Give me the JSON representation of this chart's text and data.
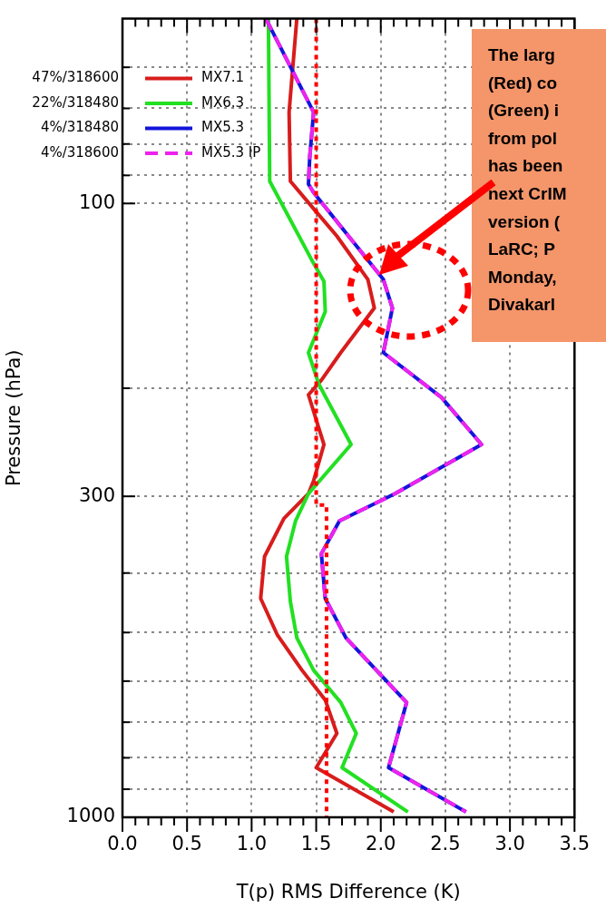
{
  "chart_data": {
    "type": "line",
    "xlabel": "T(p) RMS Difference (K)",
    "ylabel": "Pressure (hPa)",
    "log": "y",
    "grid": true,
    "legend": "top left",
    "marker": "none",
    "xlim": [
      0,
      3.5
    ],
    "ylim": [
      1000,
      50
    ],
    "xticks": [
      {
        "value": 0,
        "label": "0.0"
      },
      {
        "value": 0.1,
        "label": null
      },
      {
        "value": 0.2,
        "label": null
      },
      {
        "value": 0.3,
        "label": null
      },
      {
        "value": 0.4,
        "label": null
      },
      {
        "value": 0.5,
        "label": "0.5"
      },
      {
        "value": 0.6,
        "label": null
      },
      {
        "value": 0.7,
        "label": null
      },
      {
        "value": 0.8,
        "label": null
      },
      {
        "value": 0.9,
        "label": null
      },
      {
        "value": 1,
        "label": "1.0"
      },
      {
        "value": 1.1,
        "label": null
      },
      {
        "value": 1.2,
        "label": null
      },
      {
        "value": 1.3,
        "label": null
      },
      {
        "value": 1.4,
        "label": null
      },
      {
        "value": 1.5,
        "label": "1.5"
      },
      {
        "value": 1.6,
        "label": null
      },
      {
        "value": 1.7,
        "label": null
      },
      {
        "value": 1.8,
        "label": null
      },
      {
        "value": 1.9,
        "label": null
      },
      {
        "value": 2,
        "label": "2.0"
      },
      {
        "value": 2.1,
        "label": null
      },
      {
        "value": 2.2,
        "label": null
      },
      {
        "value": 2.3,
        "label": null
      },
      {
        "value": 2.4,
        "label": null
      },
      {
        "value": 2.5,
        "label": "2.5"
      },
      {
        "value": 2.6,
        "label": null
      },
      {
        "value": 2.7,
        "label": null
      },
      {
        "value": 2.8,
        "label": null
      },
      {
        "value": 2.9,
        "label": null
      },
      {
        "value": 3,
        "label": "3.0"
      },
      {
        "value": 3.1,
        "label": null
      },
      {
        "value": 3.2,
        "label": null
      },
      {
        "value": 3.3,
        "label": null
      },
      {
        "value": 3.4,
        "label": null
      },
      {
        "value": 3.5,
        "label": "3.5"
      }
    ],
    "yticks": [
      {
        "value": 60,
        "label": null
      },
      {
        "value": 70,
        "label": null
      },
      {
        "value": 80,
        "label": null
      },
      {
        "value": 90,
        "label": null
      },
      100,
      {
        "value": 200,
        "label": null
      },
      300,
      {
        "value": 400,
        "label": null
      },
      {
        "value": 500,
        "label": null
      },
      {
        "value": 600,
        "label": null
      },
      {
        "value": 700,
        "label": null
      },
      {
        "value": 800,
        "label": null
      },
      {
        "value": 900,
        "label": null
      },
      1000
    ],
    "series": [
      {
        "name": "MX7.1",
        "color": "#d81c1c",
        "x": [
          1.35,
          1.29,
          1.3,
          1.48,
          1.66,
          1.9,
          1.95,
          1.69,
          1.54,
          1.44,
          1.56,
          1.48,
          1.44,
          1.25,
          1.1,
          1.07,
          1.2,
          1.39,
          1.57,
          1.66,
          1.5,
          2.1
        ],
        "values": [
          50,
          71,
          92,
          102,
          113,
          133,
          148,
          175,
          194,
          205,
          247,
          283,
          297,
          326,
          376,
          440,
          505,
          576,
          644,
          730,
          830,
          980
        ]
      },
      {
        "name": "MX6.3",
        "color": "#22e022",
        "x": [
          1.13,
          1.14,
          1.46,
          1.56,
          1.57,
          1.44,
          1.52,
          1.77,
          1.44,
          1.34,
          1.27,
          1.3,
          1.35,
          1.48,
          1.69,
          1.81,
          1.7,
          2.21
        ],
        "values": [
          50,
          92,
          123,
          134,
          150,
          175,
          197,
          247,
          297,
          329,
          376,
          445,
          510,
          576,
          650,
          730,
          830,
          980
        ]
      },
      {
        "name": "MX5.3",
        "color": "#1414dc",
        "x": [
          1.11,
          1.48,
          1.45,
          1.44,
          1.48,
          2.02,
          2.09,
          2.02,
          2.47,
          2.78,
          2.11,
          1.68,
          1.54,
          1.57,
          1.73,
          2.2,
          2.06,
          2.66
        ],
        "values": [
          50,
          71,
          84,
          93,
          96,
          133,
          148,
          175,
          207,
          247,
          297,
          329,
          372,
          440,
          510,
          650,
          830,
          980
        ]
      },
      {
        "name": "MX5.3 IP",
        "color": "#ee22ee",
        "line_style": "dashed",
        "x": [
          1.11,
          1.48,
          1.45,
          1.44,
          1.48,
          2.02,
          2.09,
          2.02,
          2.47,
          2.78,
          2.11,
          1.68,
          1.54,
          1.57,
          1.73,
          2.2,
          2.06,
          2.66
        ],
        "values": [
          50,
          71,
          84,
          93,
          96,
          133,
          148,
          175,
          207,
          247,
          297,
          329,
          372,
          440,
          510,
          650,
          830,
          980
        ]
      },
      {
        "color": "#ff0000",
        "line_style": "dotted",
        "x": [
          1.5,
          1.5,
          1.58,
          1.58
        ],
        "values": [
          50,
          310,
          310,
          1000
        ]
      }
    ],
    "annotations": [
      "47%/318600",
      "22%/318480",
      "4%/318480",
      "4%/318600",
      "The larg\n(Red) co\n(Green) i\nfrom pol\nhas been\nnext CrIM\nversion (\nLaRC; P\nMonday,\nDivakarl"
    ]
  }
}
